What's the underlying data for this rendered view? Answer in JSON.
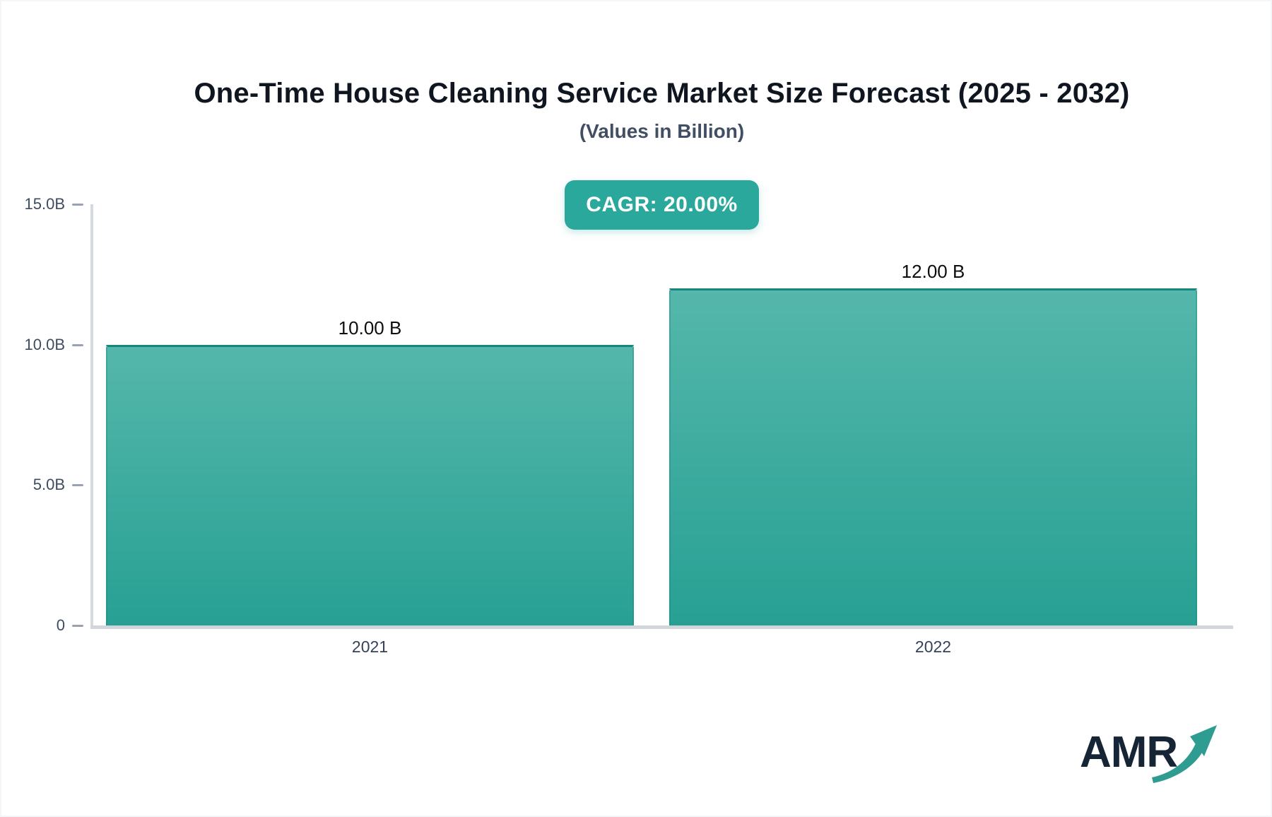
{
  "page": {
    "background": "#ffffff",
    "frame_border_color": "#f3f5f7"
  },
  "header": {
    "title": "One-Time House Cleaning Service Market Size Forecast (2025 - 2032)",
    "subtitle": "(Values in Billion)"
  },
  "badge": {
    "label": "CAGR: 20.00%",
    "bg": "#2AA89C",
    "text_color": "#ffffff"
  },
  "chart_data": {
    "type": "bar",
    "title": "One-Time House Cleaning Service Market Size Forecast (2025 - 2032)",
    "subtitle": "(Values in Billion)",
    "cagr_percent": 20.0,
    "categories": [
      "2021",
      "2022"
    ],
    "values": [
      10.0,
      12.0
    ],
    "value_labels": [
      "10.00 B",
      "12.00 B"
    ],
    "unit": "Billion",
    "ylim": [
      0,
      15
    ],
    "yticks": [
      {
        "value": 0,
        "label": "0"
      },
      {
        "value": 5,
        "label": "5.0B"
      },
      {
        "value": 10,
        "label": "10.0B"
      },
      {
        "value": 15,
        "label": "15.0B"
      }
    ],
    "grid": false,
    "legend": false,
    "bar_color_top": "#55B7AB",
    "bar_color_bottom": "#27A093",
    "bar_border_color": "#17877C",
    "axis_line_color": "#d4d7dc",
    "tick_color": "#99a2af",
    "axis_text_color": "#3e4c61"
  },
  "logo": {
    "text": "AMR",
    "arrow_icon": "growth-arrow-icon",
    "navy": "#152536",
    "teal": "#2E9C90"
  }
}
